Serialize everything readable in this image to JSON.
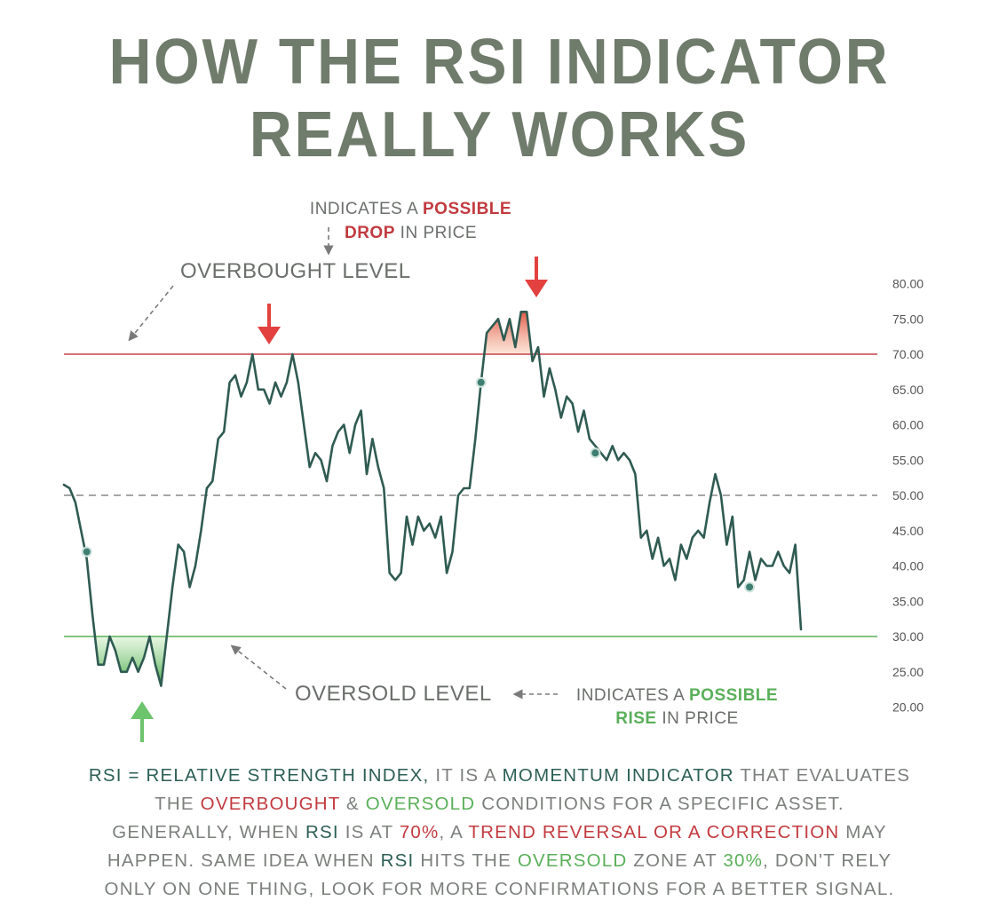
{
  "title": {
    "line1": "HOW THE RSI INDICATOR",
    "line2": "REALLY WORKS"
  },
  "notes": {
    "drop_a": "INDICATES A ",
    "drop_b": "POSSIBLE",
    "drop_c": "DROP",
    "drop_d": " IN PRICE",
    "rise_a": "INDICATES A ",
    "rise_b": "POSSIBLE",
    "rise_c": "RISE",
    "rise_d": " IN PRICE",
    "overbought_level": "OVERBOUGHT LEVEL",
    "oversold_level": "OVERSOLD LEVEL"
  },
  "footer": {
    "l1a": "RSI = RELATIVE STRENGTH INDEX,",
    "l1b": " IT IS A ",
    "l1c": "MOMENTUM INDICATOR",
    "l1d": " THAT EVALUATES",
    "l2a": "THE ",
    "l2b": "OVERBOUGHT",
    "l2c": " & ",
    "l2d": "OVERSOLD",
    "l2e": " CONDITIONS FOR A SPECIFIC ASSET.",
    "l3a": "GENERALLY, WHEN ",
    "l3b": "RSI",
    "l3c": " IS AT ",
    "l3d": "70%",
    "l3e": ", A ",
    "l3f": "TREND REVERSAL OR A CORRECTION",
    "l3g": " MAY",
    "l4a": "HAPPEN. SAME IDEA WHEN ",
    "l4b": "RSI",
    "l4c": " HITS THE ",
    "l4d": "OVERSOLD",
    "l4e": " ZONE AT ",
    "l4f": "30%",
    "l4g": ", DON'T RELY",
    "l5": "ONLY ON ONE THING, LOOK FOR MORE CONFIRMATIONS FOR A BETTER SIGNAL."
  },
  "colors": {
    "line": "#2f5b52",
    "overbought": "#c94048",
    "oversold": "#58b058",
    "midline": "#888888",
    "arrow_red": "#e2413f",
    "arrow_green": "#6cc46c"
  },
  "chart_data": {
    "type": "line",
    "title": "",
    "xlabel": "",
    "ylabel": "",
    "ylim": [
      20,
      80
    ],
    "yticks": [
      "80.00",
      "75.00",
      "70.00",
      "65.00",
      "60.00",
      "55.00",
      "50.00",
      "45.00",
      "40.00",
      "35.00",
      "30.00",
      "25.00",
      "20.00"
    ],
    "levels": {
      "overbought": 70,
      "mid": 50,
      "oversold": 30
    },
    "series": [
      {
        "values": [
          51.5,
          51,
          49,
          45,
          41,
          33,
          26,
          26,
          30,
          28,
          25,
          25,
          27,
          25,
          27,
          30,
          26,
          23,
          30,
          37,
          43,
          42,
          37,
          40,
          45,
          51,
          52,
          58,
          59,
          66,
          67,
          64,
          66,
          70,
          65,
          65,
          63,
          66,
          64,
          66,
          70,
          66,
          60,
          54,
          56,
          55,
          52,
          57,
          59,
          60,
          56,
          60,
          62,
          53,
          58,
          54,
          51,
          39,
          38,
          39,
          47,
          43,
          47,
          45,
          46,
          44,
          47,
          39,
          42,
          50,
          51,
          51,
          58,
          66,
          73,
          74,
          75,
          72,
          75,
          71,
          76,
          76,
          69,
          71,
          64,
          68,
          65,
          61,
          64,
          63,
          59,
          62,
          58,
          57,
          56,
          55,
          57,
          55,
          56,
          55,
          53,
          44,
          45,
          41,
          44,
          40,
          41,
          38,
          43,
          41,
          44,
          45,
          44,
          49,
          53,
          50,
          43,
          47,
          37,
          38,
          42,
          38,
          41,
          40,
          40,
          42,
          40,
          39,
          43,
          31
        ]
      }
    ],
    "markers": [
      {
        "index": 4,
        "value": 42
      },
      {
        "index": 73,
        "value": 66
      },
      {
        "index": 93,
        "value": 56
      },
      {
        "index": 120,
        "value": 37
      }
    ]
  }
}
